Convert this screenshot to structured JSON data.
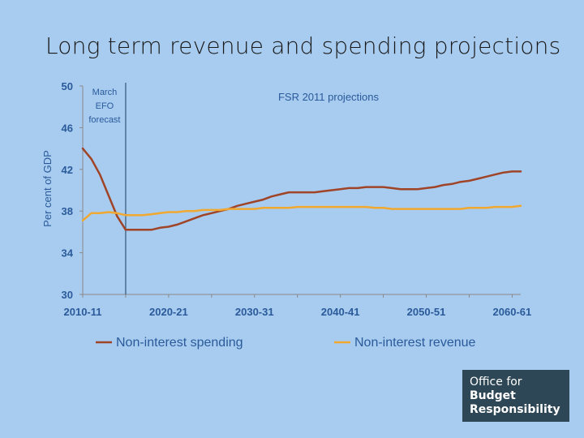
{
  "slide": {
    "title": "Long term revenue and spending projections"
  },
  "logo": {
    "line1": "Office for",
    "line2": "Budget",
    "line3": "Responsibility"
  },
  "chart_data": {
    "type": "line",
    "title": "",
    "xlabel": "",
    "ylabel": "Per cent of GDP",
    "ylim": [
      30,
      50
    ],
    "yticks": [
      30,
      34,
      38,
      42,
      46,
      50
    ],
    "xlim": [
      2010,
      2061
    ],
    "xtick_labels": [
      "2010-11",
      "2020-21",
      "2030-31",
      "2040-41",
      "2050-51",
      "2060-61"
    ],
    "xticks": [
      2010,
      2020,
      2030,
      2040,
      2050,
      2060
    ],
    "grid": false,
    "legend_position": "bottom",
    "annotations": [
      {
        "text": "March EFO forecast",
        "lines": [
          "March",
          "EFO",
          "forecast"
        ],
        "x": 2015
      },
      {
        "text": "FSR 2011 projections"
      }
    ],
    "vline_x": 2015,
    "series": [
      {
        "name": "Non-interest spending",
        "color": "#a04428",
        "points": [
          [
            2010,
            44.0
          ],
          [
            2011,
            43.0
          ],
          [
            2012,
            41.5
          ],
          [
            2013,
            39.5
          ],
          [
            2014,
            37.5
          ],
          [
            2015,
            36.2
          ],
          [
            2016,
            36.2
          ],
          [
            2017,
            36.2
          ],
          [
            2018,
            36.2
          ],
          [
            2019,
            36.4
          ],
          [
            2020,
            36.5
          ],
          [
            2021,
            36.7
          ],
          [
            2022,
            37.0
          ],
          [
            2023,
            37.3
          ],
          [
            2024,
            37.6
          ],
          [
            2025,
            37.8
          ],
          [
            2026,
            38.0
          ],
          [
            2027,
            38.2
          ],
          [
            2028,
            38.5
          ],
          [
            2029,
            38.7
          ],
          [
            2030,
            38.9
          ],
          [
            2031,
            39.1
          ],
          [
            2032,
            39.4
          ],
          [
            2033,
            39.6
          ],
          [
            2034,
            39.8
          ],
          [
            2035,
            39.8
          ],
          [
            2036,
            39.8
          ],
          [
            2037,
            39.8
          ],
          [
            2038,
            39.9
          ],
          [
            2039,
            40.0
          ],
          [
            2040,
            40.1
          ],
          [
            2041,
            40.2
          ],
          [
            2042,
            40.2
          ],
          [
            2043,
            40.3
          ],
          [
            2044,
            40.3
          ],
          [
            2045,
            40.3
          ],
          [
            2046,
            40.2
          ],
          [
            2047,
            40.1
          ],
          [
            2048,
            40.1
          ],
          [
            2049,
            40.1
          ],
          [
            2050,
            40.2
          ],
          [
            2051,
            40.3
          ],
          [
            2052,
            40.5
          ],
          [
            2053,
            40.6
          ],
          [
            2054,
            40.8
          ],
          [
            2055,
            40.9
          ],
          [
            2056,
            41.1
          ],
          [
            2057,
            41.3
          ],
          [
            2058,
            41.5
          ],
          [
            2059,
            41.7
          ],
          [
            2060,
            41.8
          ],
          [
            2061,
            41.8
          ]
        ]
      },
      {
        "name": "Non-interest revenue",
        "color": "#f0a830",
        "points": [
          [
            2010,
            37.1
          ],
          [
            2011,
            37.8
          ],
          [
            2012,
            37.8
          ],
          [
            2013,
            37.9
          ],
          [
            2014,
            37.8
          ],
          [
            2015,
            37.6
          ],
          [
            2016,
            37.6
          ],
          [
            2017,
            37.6
          ],
          [
            2018,
            37.7
          ],
          [
            2019,
            37.8
          ],
          [
            2020,
            37.9
          ],
          [
            2021,
            37.9
          ],
          [
            2022,
            38.0
          ],
          [
            2023,
            38.0
          ],
          [
            2024,
            38.1
          ],
          [
            2025,
            38.1
          ],
          [
            2026,
            38.1
          ],
          [
            2027,
            38.2
          ],
          [
            2028,
            38.2
          ],
          [
            2029,
            38.2
          ],
          [
            2030,
            38.2
          ],
          [
            2031,
            38.3
          ],
          [
            2032,
            38.3
          ],
          [
            2033,
            38.3
          ],
          [
            2034,
            38.3
          ],
          [
            2035,
            38.4
          ],
          [
            2036,
            38.4
          ],
          [
            2037,
            38.4
          ],
          [
            2038,
            38.4
          ],
          [
            2039,
            38.4
          ],
          [
            2040,
            38.4
          ],
          [
            2041,
            38.4
          ],
          [
            2042,
            38.4
          ],
          [
            2043,
            38.4
          ],
          [
            2044,
            38.3
          ],
          [
            2045,
            38.3
          ],
          [
            2046,
            38.2
          ],
          [
            2047,
            38.2
          ],
          [
            2048,
            38.2
          ],
          [
            2049,
            38.2
          ],
          [
            2050,
            38.2
          ],
          [
            2051,
            38.2
          ],
          [
            2052,
            38.2
          ],
          [
            2053,
            38.2
          ],
          [
            2054,
            38.2
          ],
          [
            2055,
            38.3
          ],
          [
            2056,
            38.3
          ],
          [
            2057,
            38.3
          ],
          [
            2058,
            38.4
          ],
          [
            2059,
            38.4
          ],
          [
            2060,
            38.4
          ],
          [
            2061,
            38.5
          ]
        ]
      }
    ]
  }
}
